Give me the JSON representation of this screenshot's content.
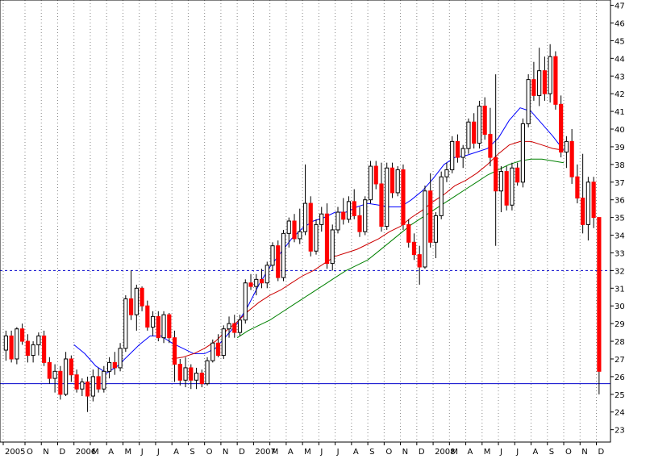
{
  "chart_data": {
    "type": "candlestick",
    "title": "",
    "xlabel": "",
    "ylabel": "",
    "ylim": [
      22.3,
      47.3
    ],
    "y_ticks": [
      23,
      24,
      25,
      26,
      27,
      28,
      29,
      30,
      31,
      32,
      33,
      34,
      35,
      36,
      37,
      38,
      39,
      40,
      41,
      42,
      43,
      44,
      45,
      46,
      47
    ],
    "x_tick_labels": [
      "2005",
      "O",
      "N",
      "D",
      "2006",
      "M",
      "A",
      "M",
      "J",
      "J",
      "A",
      "S",
      "O",
      "N",
      "D",
      "2007",
      "M",
      "A",
      "M",
      "J",
      "J",
      "A",
      "S",
      "O",
      "N",
      "D",
      "2008",
      "M",
      "A",
      "M",
      "J",
      "J",
      "A",
      "S",
      "O",
      "N",
      "D"
    ],
    "x_tick_positions": [
      0,
      4,
      7,
      10,
      13,
      16,
      19,
      22,
      25,
      28,
      31,
      34,
      37,
      40,
      43,
      46,
      49,
      52,
      55,
      58,
      61,
      64,
      67,
      70,
      73,
      76,
      79,
      82,
      85,
      88,
      91,
      94,
      97,
      100,
      103,
      106,
      109
    ],
    "x_range": [
      0,
      111
    ],
    "grid": "vertical dotted",
    "horizontal_lines": [
      {
        "value": 32.0,
        "style": "dashed",
        "color": "#0000cc"
      },
      {
        "value": 25.6,
        "style": "solid",
        "color": "#0000cc"
      }
    ],
    "colors": {
      "up": "#ffffff",
      "down": "#ff0000",
      "wick": "#000000",
      "ma_short": "#0000ff",
      "ma_mid": "#cc0000",
      "ma_long": "#008000"
    },
    "candles_ohlc": [
      [
        27.5,
        28.6,
        26.9,
        28.3
      ],
      [
        28.3,
        28.6,
        26.8,
        27.0
      ],
      [
        27.0,
        28.8,
        26.7,
        28.7
      ],
      [
        28.7,
        29.0,
        27.8,
        28.0
      ],
      [
        28.0,
        28.4,
        26.8,
        27.2
      ],
      [
        27.2,
        28.0,
        26.8,
        27.8
      ],
      [
        27.8,
        28.5,
        27.2,
        28.3
      ],
      [
        28.3,
        28.6,
        26.6,
        26.8
      ],
      [
        26.8,
        27.1,
        25.6,
        25.9
      ],
      [
        25.9,
        26.7,
        25.1,
        26.3
      ],
      [
        26.3,
        26.6,
        24.7,
        25.0
      ],
      [
        25.0,
        27.4,
        24.9,
        27.0
      ],
      [
        27.0,
        27.2,
        25.7,
        26.1
      ],
      [
        26.1,
        26.4,
        25.1,
        25.3
      ],
      [
        25.3,
        25.9,
        24.9,
        25.7
      ],
      [
        25.7,
        26.0,
        24.0,
        24.9
      ],
      [
        24.9,
        26.4,
        24.6,
        26.0
      ],
      [
        26.0,
        26.5,
        25.1,
        25.3
      ],
      [
        25.3,
        26.6,
        25.1,
        26.3
      ],
      [
        26.3,
        27.1,
        25.9,
        26.8
      ],
      [
        26.8,
        27.4,
        26.1,
        26.5
      ],
      [
        26.5,
        27.9,
        26.3,
        27.6
      ],
      [
        27.6,
        30.6,
        27.4,
        30.4
      ],
      [
        30.4,
        32.0,
        29.2,
        29.5
      ],
      [
        29.5,
        31.2,
        28.6,
        31.0
      ],
      [
        31.0,
        31.1,
        29.7,
        30.0
      ],
      [
        30.0,
        30.3,
        28.6,
        28.8
      ],
      [
        28.8,
        29.7,
        28.3,
        29.4
      ],
      [
        29.4,
        29.7,
        28.0,
        28.2
      ],
      [
        28.2,
        29.7,
        27.9,
        29.5
      ],
      [
        29.5,
        29.6,
        27.9,
        28.2
      ],
      [
        28.2,
        28.6,
        25.7,
        26.7
      ],
      [
        26.7,
        27.0,
        25.5,
        25.8
      ],
      [
        25.8,
        27.1,
        25.4,
        26.5
      ],
      [
        26.5,
        26.7,
        25.3,
        25.8
      ],
      [
        25.8,
        26.5,
        25.3,
        26.2
      ],
      [
        26.2,
        26.4,
        25.4,
        25.6
      ],
      [
        25.6,
        27.1,
        25.5,
        26.9
      ],
      [
        26.9,
        28.1,
        26.8,
        27.9
      ],
      [
        27.9,
        28.4,
        27.1,
        27.2
      ],
      [
        27.2,
        28.9,
        27.0,
        28.7
      ],
      [
        28.7,
        29.4,
        28.2,
        29.0
      ],
      [
        29.0,
        29.5,
        28.2,
        28.5
      ],
      [
        28.5,
        29.5,
        28.3,
        29.2
      ],
      [
        29.2,
        31.5,
        29.0,
        31.3
      ],
      [
        31.3,
        31.8,
        30.9,
        31.1
      ],
      [
        31.1,
        31.8,
        30.6,
        31.5
      ],
      [
        31.5,
        32.1,
        31.0,
        31.3
      ],
      [
        31.3,
        32.5,
        31.0,
        32.3
      ],
      [
        32.3,
        33.6,
        32.0,
        33.4
      ],
      [
        33.4,
        33.7,
        31.4,
        31.6
      ],
      [
        31.6,
        34.3,
        31.4,
        34.1
      ],
      [
        34.1,
        35.0,
        33.3,
        34.8
      ],
      [
        34.8,
        35.2,
        33.6,
        33.8
      ],
      [
        33.8,
        35.5,
        33.5,
        34.2
      ],
      [
        34.2,
        38.0,
        34.0,
        35.8
      ],
      [
        35.8,
        36.2,
        32.8,
        33.1
      ],
      [
        33.1,
        34.9,
        32.9,
        34.6
      ],
      [
        34.6,
        35.6,
        34.2,
        35.2
      ],
      [
        35.2,
        35.8,
        32.1,
        32.4
      ],
      [
        32.4,
        34.6,
        32.0,
        34.3
      ],
      [
        34.3,
        35.6,
        34.1,
        35.3
      ],
      [
        35.3,
        36.1,
        34.6,
        34.9
      ],
      [
        34.9,
        36.2,
        34.7,
        35.9
      ],
      [
        35.9,
        36.6,
        34.9,
        35.1
      ],
      [
        35.1,
        35.6,
        33.9,
        34.2
      ],
      [
        34.2,
        36.2,
        34.0,
        36.0
      ],
      [
        36.0,
        38.2,
        35.8,
        37.9
      ],
      [
        37.9,
        38.2,
        36.6,
        36.9
      ],
      [
        36.9,
        38.1,
        34.2,
        34.5
      ],
      [
        34.5,
        38.1,
        34.3,
        37.8
      ],
      [
        37.8,
        38.1,
        36.1,
        36.4
      ],
      [
        36.4,
        37.9,
        36.2,
        37.7
      ],
      [
        37.7,
        38.0,
        34.3,
        34.6
      ],
      [
        34.6,
        34.9,
        33.3,
        33.6
      ],
      [
        33.6,
        34.1,
        32.6,
        32.9
      ],
      [
        32.9,
        33.4,
        31.2,
        32.2
      ],
      [
        32.2,
        36.8,
        32.1,
        36.5
      ],
      [
        36.5,
        37.5,
        33.3,
        33.6
      ],
      [
        33.6,
        35.3,
        32.7,
        35.1
      ],
      [
        35.1,
        37.6,
        34.9,
        37.3
      ],
      [
        37.3,
        38.1,
        37.0,
        37.7
      ],
      [
        37.7,
        39.6,
        37.5,
        39.3
      ],
      [
        39.3,
        39.7,
        38.1,
        38.4
      ],
      [
        38.4,
        39.1,
        37.8,
        38.9
      ],
      [
        38.9,
        40.6,
        38.6,
        40.4
      ],
      [
        40.4,
        40.9,
        38.9,
        39.2
      ],
      [
        39.2,
        41.6,
        38.9,
        41.3
      ],
      [
        41.3,
        41.8,
        39.4,
        39.7
      ],
      [
        39.7,
        41.2,
        37.9,
        38.4
      ],
      [
        38.4,
        43.1,
        33.4,
        36.5
      ],
      [
        36.5,
        37.9,
        35.3,
        37.6
      ],
      [
        37.6,
        37.9,
        35.4,
        35.7
      ],
      [
        35.7,
        38.1,
        35.4,
        37.8
      ],
      [
        37.8,
        38.1,
        36.8,
        37.0
      ],
      [
        37.0,
        40.6,
        36.7,
        40.3
      ],
      [
        40.3,
        43.1,
        40.1,
        42.8
      ],
      [
        42.8,
        43.8,
        41.6,
        41.9
      ],
      [
        41.9,
        44.6,
        41.3,
        43.3
      ],
      [
        43.3,
        44.1,
        41.6,
        42.0
      ],
      [
        42.0,
        44.8,
        41.5,
        44.1
      ],
      [
        44.1,
        44.4,
        41.1,
        41.4
      ],
      [
        41.4,
        41.9,
        38.4,
        38.7
      ],
      [
        38.7,
        39.6,
        37.8,
        39.3
      ],
      [
        39.3,
        40.0,
        36.9,
        37.3
      ],
      [
        37.3,
        38.0,
        35.8,
        36.1
      ],
      [
        36.1,
        38.6,
        34.1,
        34.6
      ],
      [
        34.6,
        37.3,
        33.7,
        37.0
      ],
      [
        37.0,
        37.3,
        34.4,
        35.0
      ],
      [
        35.0,
        35.0,
        25.0,
        26.3
      ]
    ],
    "moving_averages": [
      {
        "color": "#0000ff",
        "points": [
          [
            13,
            27.8
          ],
          [
            15,
            27.3
          ],
          [
            17,
            26.6
          ],
          [
            19,
            26.2
          ],
          [
            21,
            26.6
          ],
          [
            23,
            27.2
          ],
          [
            25,
            27.8
          ],
          [
            27,
            28.3
          ],
          [
            29,
            28.3
          ],
          [
            31,
            27.9
          ],
          [
            33,
            27.6
          ],
          [
            35,
            27.3
          ],
          [
            37,
            27.3
          ],
          [
            39,
            27.6
          ],
          [
            41,
            28.3
          ],
          [
            43,
            29.0
          ],
          [
            45,
            30.0
          ],
          [
            47,
            31.2
          ],
          [
            49,
            32.2
          ],
          [
            51,
            33.0
          ],
          [
            53,
            33.8
          ],
          [
            55,
            34.4
          ],
          [
            57,
            34.8
          ],
          [
            59,
            35.0
          ],
          [
            61,
            35.3
          ],
          [
            63,
            35.3
          ],
          [
            65,
            35.6
          ],
          [
            67,
            35.8
          ],
          [
            69,
            35.7
          ],
          [
            71,
            35.6
          ],
          [
            73,
            35.6
          ],
          [
            75,
            36.0
          ],
          [
            77,
            36.5
          ],
          [
            79,
            37.2
          ],
          [
            81,
            38.0
          ],
          [
            83,
            38.4
          ],
          [
            85,
            38.5
          ],
          [
            87,
            38.7
          ],
          [
            89,
            38.9
          ],
          [
            91,
            39.5
          ],
          [
            93,
            40.5
          ],
          [
            95,
            41.2
          ],
          [
            97,
            41.0
          ],
          [
            99,
            40.3
          ],
          [
            101,
            39.6
          ],
          [
            103,
            38.8
          ]
        ]
      },
      {
        "color": "#cc0000",
        "points": [
          [
            31,
            27.0
          ],
          [
            33,
            27.1
          ],
          [
            35,
            27.3
          ],
          [
            37,
            27.6
          ],
          [
            39,
            28.0
          ],
          [
            41,
            28.6
          ],
          [
            43,
            29.1
          ],
          [
            45,
            29.7
          ],
          [
            47,
            30.2
          ],
          [
            49,
            30.6
          ],
          [
            51,
            30.9
          ],
          [
            53,
            31.3
          ],
          [
            55,
            31.7
          ],
          [
            57,
            32.0
          ],
          [
            59,
            32.4
          ],
          [
            61,
            32.8
          ],
          [
            63,
            33.0
          ],
          [
            65,
            33.2
          ],
          [
            67,
            33.5
          ],
          [
            69,
            33.8
          ],
          [
            71,
            34.2
          ],
          [
            73,
            34.5
          ],
          [
            75,
            35.0
          ],
          [
            77,
            35.4
          ],
          [
            79,
            35.9
          ],
          [
            81,
            36.3
          ],
          [
            83,
            36.8
          ],
          [
            85,
            37.1
          ],
          [
            87,
            37.5
          ],
          [
            89,
            38.0
          ],
          [
            91,
            38.6
          ],
          [
            93,
            39.1
          ],
          [
            95,
            39.3
          ],
          [
            97,
            39.3
          ],
          [
            99,
            39.1
          ],
          [
            101,
            38.9
          ],
          [
            103,
            38.8
          ]
        ]
      },
      {
        "color": "#008000",
        "points": [
          [
            43,
            28.2
          ],
          [
            45,
            28.6
          ],
          [
            47,
            28.9
          ],
          [
            49,
            29.2
          ],
          [
            51,
            29.6
          ],
          [
            53,
            30.0
          ],
          [
            55,
            30.4
          ],
          [
            57,
            30.8
          ],
          [
            59,
            31.2
          ],
          [
            61,
            31.6
          ],
          [
            63,
            32.0
          ],
          [
            65,
            32.3
          ],
          [
            67,
            32.6
          ],
          [
            69,
            33.1
          ],
          [
            71,
            33.6
          ],
          [
            73,
            34.1
          ],
          [
            75,
            34.6
          ],
          [
            77,
            35.0
          ],
          [
            79,
            35.4
          ],
          [
            81,
            35.8
          ],
          [
            83,
            36.2
          ],
          [
            85,
            36.6
          ],
          [
            87,
            37.0
          ],
          [
            89,
            37.4
          ],
          [
            91,
            37.7
          ],
          [
            93,
            38.0
          ],
          [
            95,
            38.2
          ],
          [
            97,
            38.3
          ],
          [
            99,
            38.3
          ],
          [
            101,
            38.2
          ],
          [
            103,
            38.1
          ]
        ]
      }
    ]
  }
}
